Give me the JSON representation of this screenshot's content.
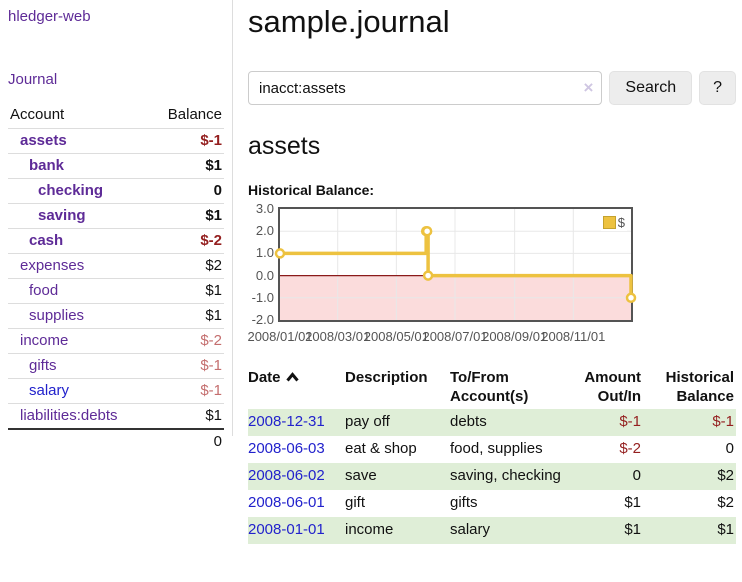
{
  "brand": "hledger-web",
  "nav": {
    "journal_label": "Journal"
  },
  "sidebar_table": {
    "account_header": "Account",
    "balance_header": "Balance",
    "accounts": [
      {
        "name": "assets",
        "balance": "$-1",
        "level": 1,
        "bold": true,
        "name_color": "purple",
        "balance_color": "darkred"
      },
      {
        "name": "bank",
        "balance": "$1",
        "level": 2,
        "bold": true,
        "name_color": "purple",
        "balance_color": "black"
      },
      {
        "name": "checking",
        "balance": "0",
        "level": 3,
        "bold": true,
        "name_color": "purple",
        "balance_color": "black"
      },
      {
        "name": "saving",
        "balance": "$1",
        "level": 3,
        "bold": true,
        "name_color": "purple",
        "balance_color": "black"
      },
      {
        "name": "cash",
        "balance": "$-2",
        "level": 2,
        "bold": true,
        "name_color": "purple",
        "balance_color": "darkred"
      },
      {
        "name": "expenses",
        "balance": "$2",
        "level": 1,
        "bold": false,
        "name_color": "purple",
        "balance_color": "black"
      },
      {
        "name": "food",
        "balance": "$1",
        "level": 2,
        "bold": false,
        "name_color": "purple",
        "balance_color": "black"
      },
      {
        "name": "supplies",
        "balance": "$1",
        "level": 2,
        "bold": false,
        "name_color": "purple",
        "balance_color": "black"
      },
      {
        "name": "income",
        "balance": "$-2",
        "level": 1,
        "bold": false,
        "name_color": "purple",
        "balance_color": "rose"
      },
      {
        "name": "gifts",
        "balance": "$-1",
        "level": 2,
        "bold": false,
        "name_color": "purple",
        "balance_color": "rose"
      },
      {
        "name": "salary",
        "balance": "$-1",
        "level": 2,
        "bold": false,
        "name_color": "blue",
        "balance_color": "rose"
      },
      {
        "name": "liabilities:debts",
        "balance": "$1",
        "level": 1,
        "bold": false,
        "name_color": "purple",
        "balance_color": "black"
      }
    ],
    "total": "0"
  },
  "header": {
    "title": "sample.journal"
  },
  "search": {
    "value": "inacct:assets",
    "clear_icon": "×",
    "button_label": "Search",
    "help_label": "?"
  },
  "account_page": {
    "heading": "assets",
    "chart_title": "Historical Balance:"
  },
  "chart_data": {
    "type": "line",
    "title": "Historical Balance:",
    "step": true,
    "series": [
      {
        "name": "$",
        "points": [
          {
            "date": "2008-01-01",
            "value": 1
          },
          {
            "date": "2008-06-01",
            "value": 2
          },
          {
            "date": "2008-06-02",
            "value": 2
          },
          {
            "date": "2008-06-03",
            "value": 0
          },
          {
            "date": "2008-12-31",
            "value": -1
          }
        ]
      }
    ],
    "x_range": [
      "2008-01-01",
      "2008-12-31"
    ],
    "x_ticks": [
      {
        "date": "2008-01-01",
        "label": "2008/01/01"
      },
      {
        "date": "2008-03-01",
        "label": "2008/03/01"
      },
      {
        "date": "2008-05-01",
        "label": "2008/05/01"
      },
      {
        "date": "2008-07-01",
        "label": "2008/07/01"
      },
      {
        "date": "2008-09-01",
        "label": "2008/09/01"
      },
      {
        "date": "2008-11-01",
        "label": "2008/11/01"
      }
    ],
    "y_ticks": [
      "3.0",
      "2.0",
      "1.0",
      "0.0",
      "-1.0",
      "-2.0"
    ],
    "y_range": [
      -2,
      3
    ],
    "grid": true,
    "legend_position": "top-right",
    "legend": [
      {
        "label": "$",
        "color": "#edc240"
      }
    ],
    "line_color": "#edc240",
    "grid_color": "#e8e8e8",
    "zero_line_color": "#8b1a1a",
    "negative_region_color": "#fbdcdc"
  },
  "register_table": {
    "headers": {
      "date": "Date",
      "description": "Description",
      "accounts": "To/From Account(s)",
      "amount": "Amount Out/In",
      "balance": "Historical Balance"
    },
    "rows": [
      {
        "date": "2008-12-31",
        "description": "pay off",
        "accounts": "debts",
        "amount": "$-1",
        "amount_color": "darkred",
        "balance": "$-1",
        "balance_color": "darkred",
        "shaded": true
      },
      {
        "date": "2008-06-03",
        "description": "eat & shop",
        "accounts": "food, supplies",
        "amount": "$-2",
        "amount_color": "darkred",
        "balance": "0",
        "balance_color": "black",
        "shaded": false
      },
      {
        "date": "2008-06-02",
        "description": "save",
        "accounts": "saving, checking",
        "amount": "0",
        "amount_color": "black",
        "balance": "$2",
        "balance_color": "black",
        "shaded": true
      },
      {
        "date": "2008-06-01",
        "description": "gift",
        "accounts": "gifts",
        "amount": "$1",
        "amount_color": "black",
        "balance": "$2",
        "balance_color": "black",
        "shaded": false
      },
      {
        "date": "2008-01-01",
        "description": "income",
        "accounts": "salary",
        "amount": "$1",
        "amount_color": "black",
        "balance": "$1",
        "balance_color": "black",
        "shaded": true
      }
    ]
  },
  "colors": {
    "link_purple": "#5e2b97",
    "link_blue": "#2222cc",
    "negative_dark": "#941f1f",
    "negative_rose": "#c46e6e",
    "row_green": "#dfeed7"
  }
}
